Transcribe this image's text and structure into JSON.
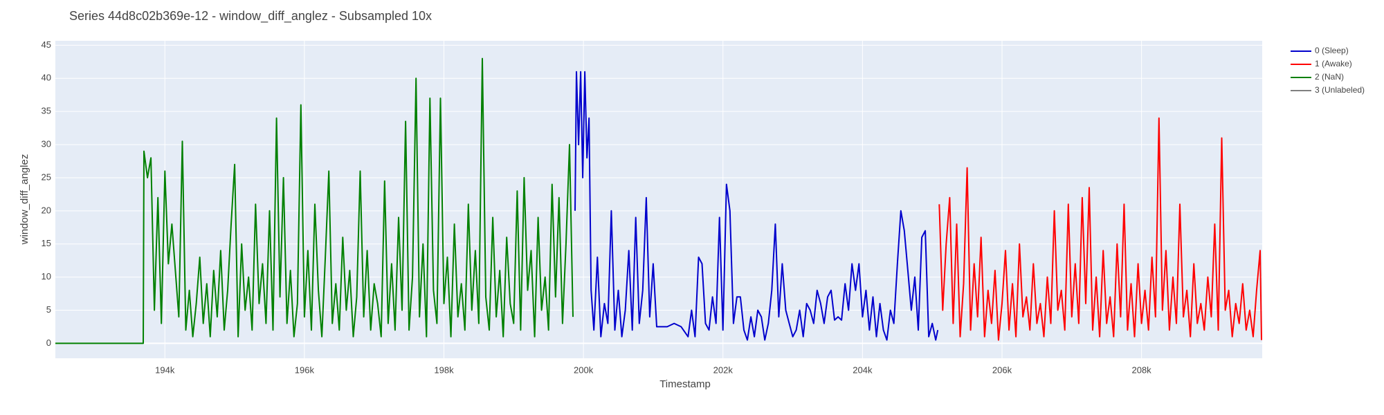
{
  "chart_data": {
    "type": "line",
    "title": "Series 44d8c02b369e-12 - window_diff_anglez - Subsampled 10x",
    "x_label": "Timestamp",
    "y_label": "window_diff_anglez",
    "xlim": [
      192430,
      209730
    ],
    "ylim": [
      -2.26,
      45.67
    ],
    "xticks": [
      {
        "value": 194000,
        "label": "194k"
      },
      {
        "value": 196000,
        "label": "196k"
      },
      {
        "value": 198000,
        "label": "198k"
      },
      {
        "value": 200000,
        "label": "200k"
      },
      {
        "value": 202000,
        "label": "202k"
      },
      {
        "value": 204000,
        "label": "204k"
      },
      {
        "value": 206000,
        "label": "206k"
      },
      {
        "value": 208000,
        "label": "208k"
      }
    ],
    "yticks": [
      0,
      5,
      10,
      15,
      20,
      25,
      30,
      35,
      40,
      45
    ],
    "grid": true,
    "legend": "right",
    "series": [
      {
        "name": "0 (Sleep)",
        "color": "#0000cc",
        "x": [
          199880,
          199900,
          199930,
          199960,
          199990,
          200020,
          200050,
          200080,
          200110,
          200150,
          200200,
          200250,
          200300,
          200350,
          200400,
          200450,
          200500,
          200550,
          200600,
          200650,
          200700,
          200750,
          200800,
          200850,
          200900,
          200950,
          201000,
          201050,
          201100,
          201200,
          201300,
          201400,
          201500,
          201550,
          201600,
          201650,
          201700,
          201750,
          201800,
          201850,
          201900,
          201950,
          202000,
          202050,
          202100,
          202150,
          202200,
          202250,
          202300,
          202350,
          202400,
          202450,
          202500,
          202550,
          202600,
          202650,
          202700,
          202750,
          202800,
          202850,
          202900,
          202950,
          203000,
          203050,
          203100,
          203150,
          203200,
          203250,
          203300,
          203350,
          203400,
          203450,
          203500,
          203550,
          203600,
          203650,
          203700,
          203750,
          203800,
          203850,
          203900,
          203950,
          204000,
          204050,
          204100,
          204150,
          204200,
          204250,
          204300,
          204350,
          204400,
          204450,
          204500,
          204550,
          204600,
          204650,
          204700,
          204750,
          204800,
          204850,
          204900,
          204950,
          205000,
          205050,
          205080
        ],
        "values": [
          20,
          41,
          30,
          41,
          25,
          41,
          28,
          34,
          8,
          2,
          13,
          1,
          6,
          3,
          20,
          2,
          8,
          1,
          5,
          14,
          2,
          19,
          3,
          8,
          22,
          4,
          12,
          2.5,
          2.5,
          2.5,
          3,
          2.5,
          1,
          5,
          1,
          13,
          12,
          3,
          2,
          7,
          3,
          19,
          2,
          24,
          20,
          3,
          7,
          7,
          2,
          0.5,
          4,
          1,
          5,
          4,
          0.5,
          3,
          8,
          18,
          4,
          12,
          5,
          3,
          1,
          2,
          5,
          1,
          6,
          5,
          3,
          8,
          6,
          3,
          7,
          8,
          3.5,
          4,
          3.5,
          9,
          5,
          12,
          8,
          12,
          4,
          8,
          2,
          7,
          1,
          6,
          2,
          0.5,
          5,
          3,
          12,
          20,
          17,
          11,
          5,
          10,
          2,
          16,
          17,
          1,
          3,
          0.5,
          2
        ]
      },
      {
        "name": "1 (Awake)",
        "color": "#ff0000",
        "x": [
          205100,
          205150,
          205200,
          205250,
          205300,
          205350,
          205400,
          205450,
          205500,
          205550,
          205600,
          205650,
          205700,
          205750,
          205800,
          205850,
          205900,
          205950,
          206000,
          206050,
          206100,
          206150,
          206200,
          206250,
          206300,
          206350,
          206400,
          206450,
          206500,
          206550,
          206600,
          206650,
          206700,
          206750,
          206800,
          206850,
          206900,
          206950,
          207000,
          207050,
          207100,
          207150,
          207200,
          207250,
          207300,
          207350,
          207400,
          207450,
          207500,
          207550,
          207600,
          207650,
          207700,
          207750,
          207800,
          207850,
          207900,
          207950,
          208000,
          208050,
          208100,
          208150,
          208200,
          208250,
          208300,
          208350,
          208400,
          208450,
          208500,
          208550,
          208600,
          208650,
          208700,
          208750,
          208800,
          208850,
          208900,
          208950,
          209000,
          209050,
          209100,
          209150,
          209200,
          209250,
          209300,
          209350,
          209400,
          209450,
          209500,
          209550,
          209600,
          209650,
          209700,
          209720
        ],
        "values": [
          21,
          5,
          15,
          22,
          3,
          18,
          1,
          9,
          26.5,
          2,
          12,
          4,
          16,
          1,
          8,
          3,
          11,
          0.5,
          6,
          14,
          2,
          9,
          1,
          15,
          4,
          7,
          2,
          12,
          3,
          6,
          1,
          10,
          3,
          20,
          5,
          8,
          2,
          21,
          4,
          12,
          3,
          22,
          6,
          23.5,
          2,
          10,
          1,
          14,
          3,
          7,
          1,
          15,
          4,
          21,
          2,
          9,
          1,
          12,
          3,
          8,
          2,
          13,
          4,
          34,
          5,
          14,
          2,
          10,
          3,
          21,
          4,
          8,
          1,
          12,
          3,
          6,
          2,
          10,
          4,
          18,
          2,
          31,
          5,
          8,
          1,
          6,
          3,
          9,
          2,
          5,
          1,
          8,
          14,
          0.5
        ]
      },
      {
        "name": "2 (NaN)",
        "color": "#008000",
        "x": [
          192430,
          193690,
          193700,
          193750,
          193800,
          193850,
          193900,
          193950,
          194000,
          194050,
          194100,
          194150,
          194200,
          194250,
          194300,
          194350,
          194400,
          194450,
          194500,
          194550,
          194600,
          194650,
          194700,
          194750,
          194800,
          194850,
          194900,
          194950,
          195000,
          195050,
          195100,
          195150,
          195200,
          195250,
          195300,
          195350,
          195400,
          195450,
          195500,
          195550,
          195600,
          195650,
          195700,
          195750,
          195800,
          195850,
          195900,
          195950,
          196000,
          196050,
          196100,
          196150,
          196200,
          196250,
          196300,
          196350,
          196400,
          196450,
          196500,
          196550,
          196600,
          196650,
          196700,
          196750,
          196800,
          196850,
          196900,
          196950,
          197000,
          197050,
          197100,
          197150,
          197200,
          197250,
          197300,
          197350,
          197400,
          197450,
          197500,
          197550,
          197600,
          197650,
          197700,
          197750,
          197800,
          197850,
          197900,
          197950,
          198000,
          198050,
          198100,
          198150,
          198200,
          198250,
          198300,
          198350,
          198400,
          198450,
          198500,
          198550,
          198600,
          198650,
          198700,
          198750,
          198800,
          198850,
          198900,
          198950,
          199000,
          199050,
          199100,
          199150,
          199200,
          199250,
          199300,
          199350,
          199400,
          199450,
          199500,
          199550,
          199600,
          199650,
          199700,
          199750,
          199800,
          199850
        ],
        "values": [
          0,
          0,
          29,
          25,
          28,
          5,
          22,
          3,
          26,
          12,
          18,
          11,
          4,
          30.5,
          2,
          8,
          1,
          6,
          13,
          3,
          9,
          1,
          11,
          4,
          14,
          2,
          8,
          18,
          27,
          1,
          15,
          5,
          10,
          2,
          21,
          6,
          12,
          3,
          20,
          2,
          34,
          7,
          25,
          3,
          11,
          1,
          6,
          36,
          4,
          14,
          2,
          21,
          8,
          1,
          13,
          26,
          3,
          9,
          2,
          16,
          5,
          11,
          1,
          7,
          26,
          4,
          14,
          2,
          9,
          6,
          1,
          24.5,
          3,
          12,
          2,
          19,
          5,
          33.5,
          2,
          10,
          40,
          4,
          15,
          1,
          37,
          8,
          3,
          37,
          6,
          13,
          1,
          18,
          4,
          9,
          2,
          21,
          5,
          14,
          3,
          43,
          7,
          2,
          19,
          4,
          11,
          1,
          16,
          6,
          3,
          23,
          2,
          25,
          8,
          14,
          1,
          19,
          5,
          10,
          2,
          24,
          7,
          22,
          3,
          15,
          30,
          4
        ]
      },
      {
        "name": "3 (Unlabeled)",
        "color": "#808080",
        "x": [],
        "values": []
      }
    ]
  }
}
